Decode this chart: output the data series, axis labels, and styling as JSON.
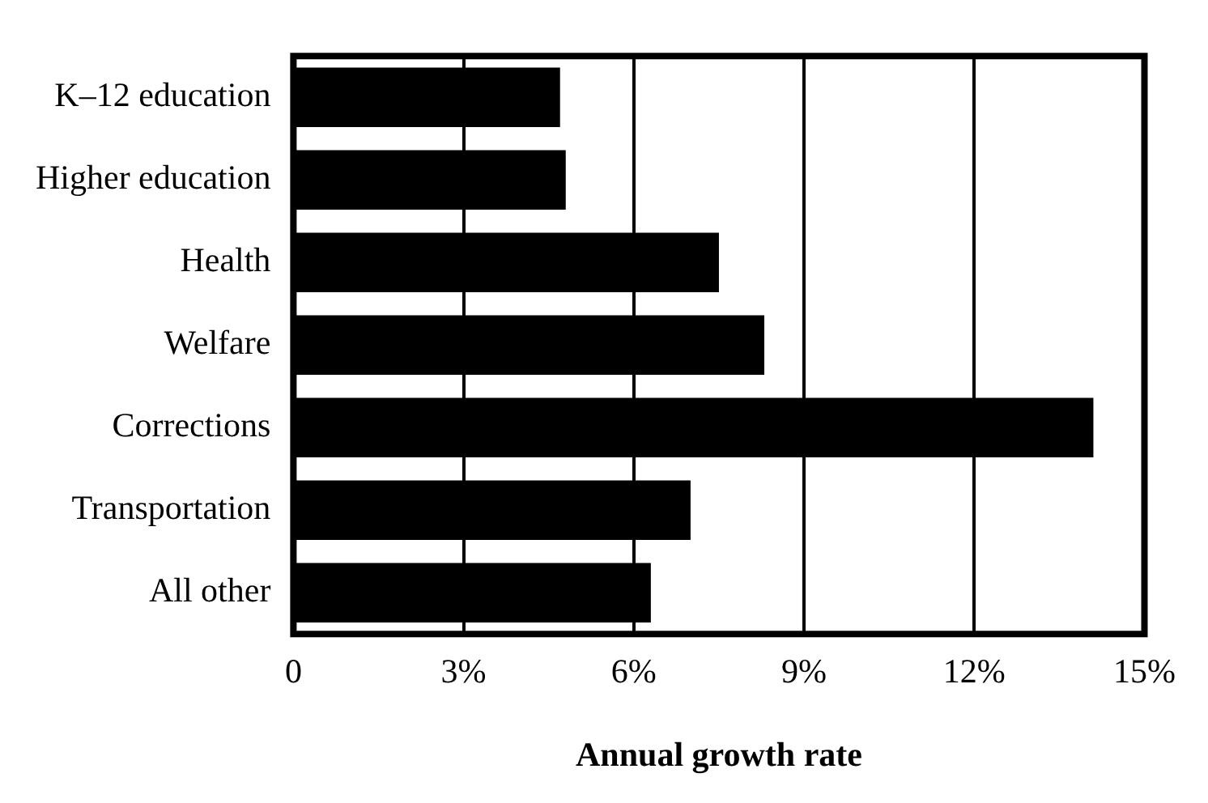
{
  "chart_data": {
    "type": "bar",
    "orientation": "horizontal",
    "xlabel": "Annual growth rate",
    "categories": [
      "K–12 education",
      "Higher education",
      "Health",
      "Welfare",
      "Corrections",
      "Transportation",
      "All other"
    ],
    "values": [
      4.7,
      4.8,
      7.5,
      8.3,
      14.1,
      7.0,
      6.3
    ],
    "color": "#000000",
    "xlim": [
      0,
      15
    ],
    "xticks": [
      0,
      {
        "value": 3,
        "label": "3%"
      },
      {
        "value": 6,
        "label": "6%"
      },
      {
        "value": 9,
        "label": "9%"
      },
      {
        "value": 12,
        "label": "12%"
      },
      {
        "value": 15,
        "label": "15%"
      }
    ],
    "grid": "x",
    "legend": false
  }
}
